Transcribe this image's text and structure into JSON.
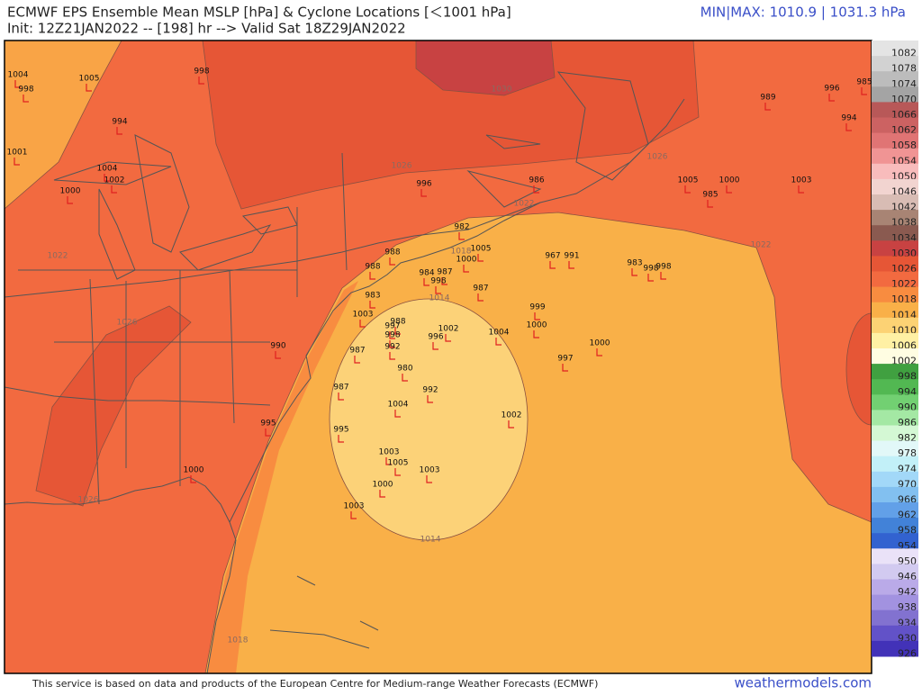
{
  "header": {
    "title": "ECMWF EPS Ensemble Mean MSLP [hPa] & Cyclone Locations [＜1001 hPa]",
    "init": "Init: 12Z21JAN2022 -- [198] hr --> Valid Sat 18Z29JAN2022",
    "minmax": "MIN|MAX: 1010.9 | 1031.3 hPa"
  },
  "legend": [
    {
      "label": 1082,
      "color": "#e4e4e4"
    },
    {
      "label": 1078,
      "color": "#d2d2d2"
    },
    {
      "label": 1074,
      "color": "#bcbcbc"
    },
    {
      "label": 1070,
      "color": "#a4a4a4"
    },
    {
      "label": 1066,
      "color": "#b85858"
    },
    {
      "label": 1062,
      "color": "#cc6262"
    },
    {
      "label": 1058,
      "color": "#e07474"
    },
    {
      "label": 1054,
      "color": "#f09494"
    },
    {
      "label": 1050,
      "color": "#f8bcbc"
    },
    {
      "label": 1046,
      "color": "#f2d4d0"
    },
    {
      "label": 1042,
      "color": "#d8bcb4"
    },
    {
      "label": 1038,
      "color": "#a88474"
    },
    {
      "label": 1034,
      "color": "#8a5a50"
    },
    {
      "label": 1030,
      "color": "#c84242"
    },
    {
      "label": 1026,
      "color": "#e65636"
    },
    {
      "label": 1022,
      "color": "#f26a40"
    },
    {
      "label": 1018,
      "color": "#f88c40"
    },
    {
      "label": 1014,
      "color": "#f9b048"
    },
    {
      "label": 1010,
      "color": "#fcd274"
    },
    {
      "label": 1006,
      "color": "#fff0a4"
    },
    {
      "label": 1002,
      "color": "#fffde2"
    },
    {
      "label": 998,
      "color": "#40a040"
    },
    {
      "label": 994,
      "color": "#52b852"
    },
    {
      "label": 990,
      "color": "#72d072"
    },
    {
      "label": 986,
      "color": "#a4e8a4"
    },
    {
      "label": 982,
      "color": "#d4f8d4"
    },
    {
      "label": 978,
      "color": "#e2f8f8"
    },
    {
      "label": 974,
      "color": "#c2f0f8"
    },
    {
      "label": 970,
      "color": "#a2d8f8"
    },
    {
      "label": 966,
      "color": "#82c0f0"
    },
    {
      "label": 962,
      "color": "#62a0e8"
    },
    {
      "label": 958,
      "color": "#4282d8"
    },
    {
      "label": 954,
      "color": "#3262d0"
    },
    {
      "label": 950,
      "color": "#eae2f8"
    },
    {
      "label": 946,
      "color": "#d2caf0"
    },
    {
      "label": 942,
      "color": "#baaae8"
    },
    {
      "label": 938,
      "color": "#a292e0"
    },
    {
      "label": 934,
      "color": "#8272d0"
    },
    {
      "label": 930,
      "color": "#6252c8"
    },
    {
      "label": 926,
      "color": "#4232b8"
    }
  ],
  "cyclones": [
    1004,
    998,
    1005,
    998,
    994,
    1001,
    1004,
    1002,
    1000,
    989,
    996,
    985,
    994,
    1005,
    1000,
    985,
    1003,
    986,
    996,
    982,
    1005,
    1000,
    967,
    991,
    983,
    998,
    998,
    988,
    988,
    984,
    987,
    998,
    987,
    983,
    1003,
    999,
    1000,
    988,
    997,
    998,
    1002,
    996,
    1004,
    992,
    987,
    1000,
    997,
    980,
    990,
    987,
    992,
    1004,
    1002,
    995,
    995,
    1003,
    1005,
    1003,
    1000,
    1000,
    1003
  ],
  "contour_labels": [
    1030,
    1026,
    1026,
    1022,
    1022,
    1022,
    1026,
    1014,
    1018,
    1014,
    1018,
    1026
  ],
  "footer": {
    "credit": "This service is based on data and products of the European Centre for Medium-range Weather Forecasts (ECMWF)",
    "site": "weathermodels.com"
  }
}
